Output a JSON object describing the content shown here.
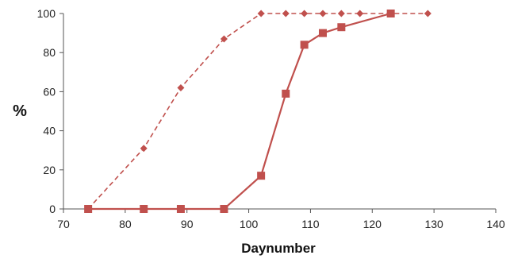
{
  "chart_data": {
    "type": "line",
    "title": "",
    "xlabel": "Daynumber",
    "ylabel": "%",
    "xlim": [
      70,
      140
    ],
    "ylim": [
      0,
      100
    ],
    "xticks": [
      70,
      80,
      90,
      100,
      110,
      120,
      130,
      140
    ],
    "yticks": [
      0,
      20,
      40,
      60,
      80,
      100
    ],
    "grid": false,
    "legend": "none",
    "series": [
      {
        "style": "dashed",
        "marker": "diamond",
        "color": "#c0504d",
        "x": [
          74,
          83,
          89,
          96,
          102,
          106,
          109,
          112,
          115,
          118,
          123,
          129
        ],
        "y": [
          0,
          31,
          62,
          87,
          100,
          100,
          100,
          100,
          100,
          100,
          100,
          100
        ]
      },
      {
        "style": "solid",
        "marker": "square",
        "color": "#c0504d",
        "x": [
          74,
          83,
          89,
          96,
          102,
          106,
          109,
          112,
          115,
          123
        ],
        "y": [
          0,
          0,
          0,
          0,
          17,
          59,
          84,
          90,
          93,
          100
        ]
      }
    ]
  }
}
